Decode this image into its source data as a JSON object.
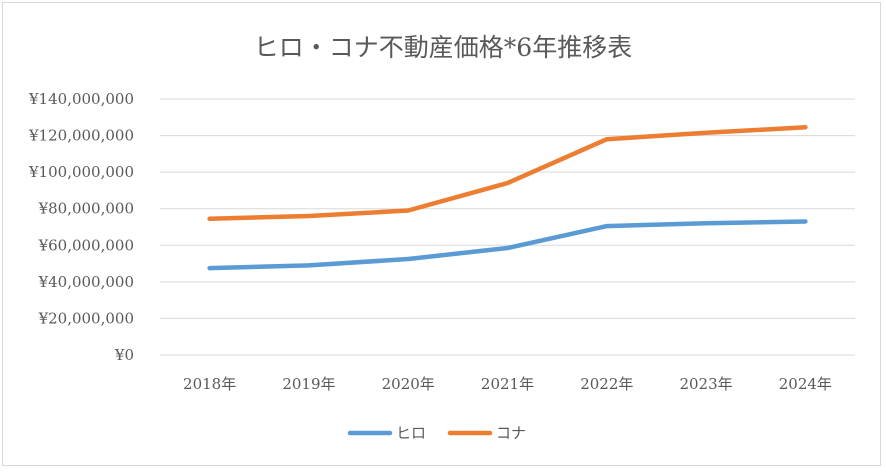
{
  "chart_data": {
    "type": "line",
    "title": "ヒロ・コナ不動産価格*6年推移表",
    "xlabel": "",
    "ylabel": "",
    "categories": [
      "2018年",
      "2019年",
      "2020年",
      "2021年",
      "2022年",
      "2023年",
      "2024年"
    ],
    "y_tick_labels": [
      "¥0",
      "¥20,000,000",
      "¥40,000,000",
      "¥60,000,000",
      "¥80,000,000",
      "¥100,000,000",
      "¥120,000,000",
      "¥140,000,000"
    ],
    "ylim": [
      0,
      140000000
    ],
    "y_tick_step": 20000000,
    "grid": true,
    "legend_position": "bottom",
    "series": [
      {
        "name": "ヒロ",
        "color": "#5b9bd5",
        "values": [
          47500000,
          49000000,
          52500000,
          58500000,
          70500000,
          72000000,
          73000000
        ]
      },
      {
        "name": "コナ",
        "color": "#ed7d31",
        "values": [
          74500000,
          76000000,
          79000000,
          94000000,
          118000000,
          121500000,
          124500000
        ]
      }
    ]
  }
}
